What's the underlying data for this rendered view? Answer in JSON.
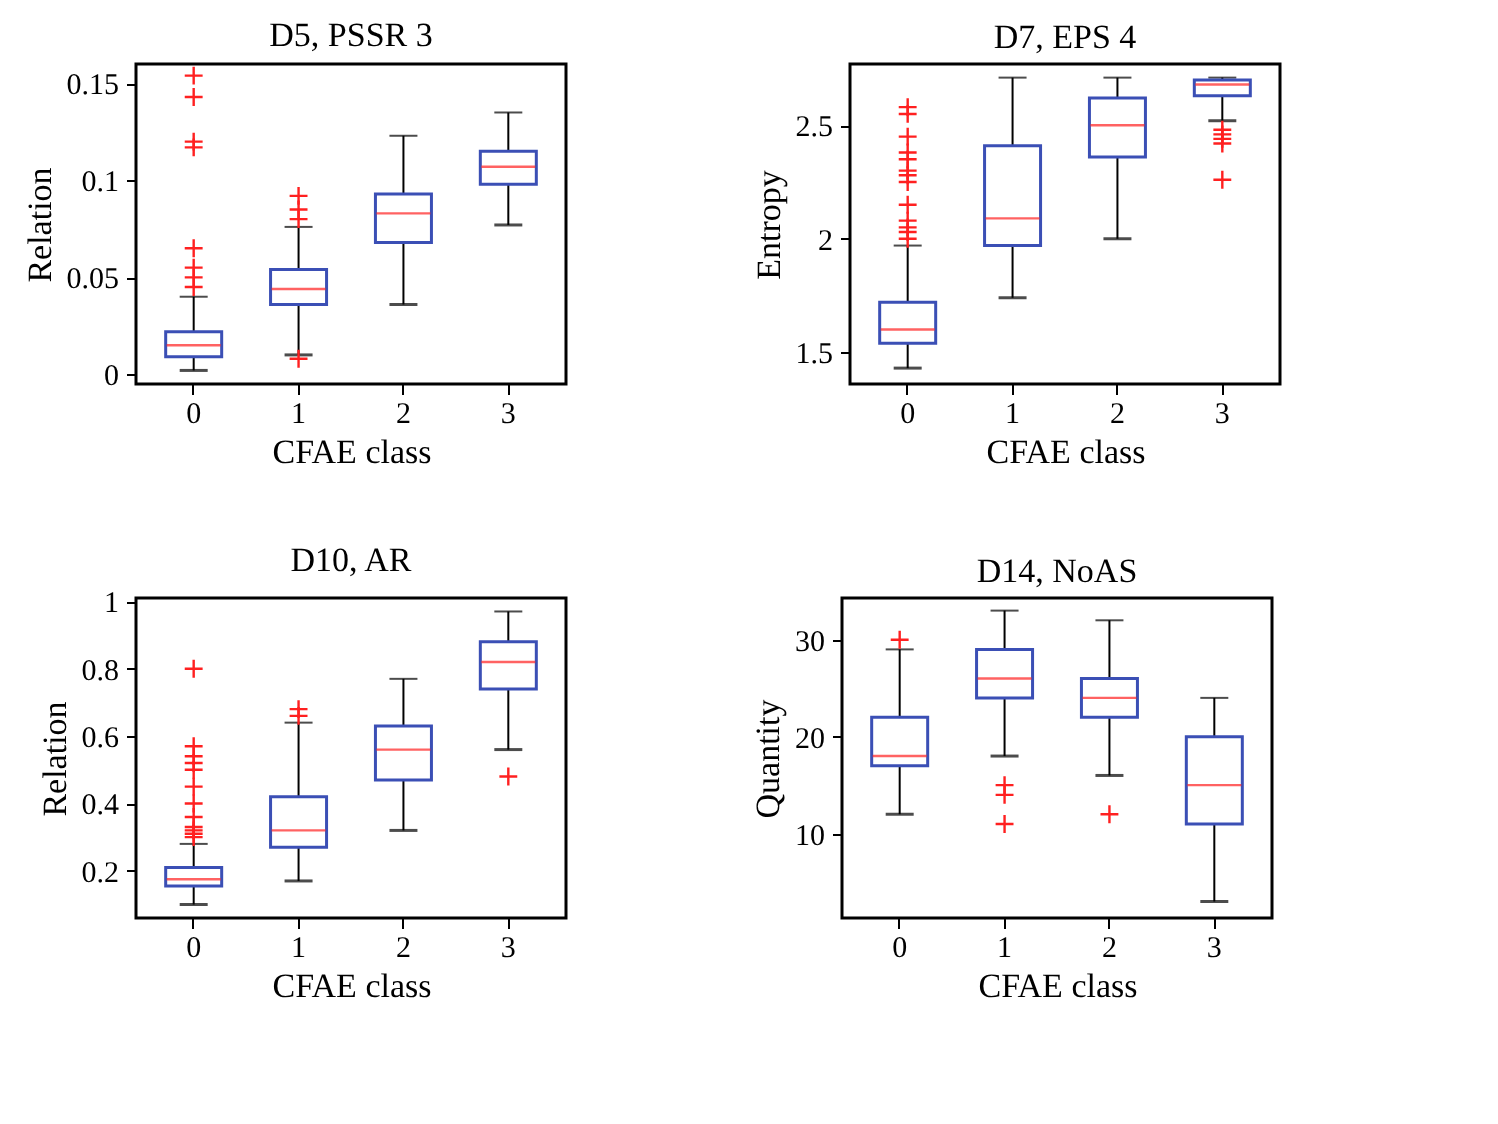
{
  "chart_data": [
    {
      "type": "box",
      "title": "D5, PSSR 3",
      "xlabel": "CFAE class",
      "ylabel": "Relation",
      "categories": [
        "0",
        "1",
        "2",
        "3"
      ],
      "ylim": [
        -0.005,
        0.16
      ],
      "yticks": [
        0,
        0.05,
        0.1,
        0.15
      ],
      "grid": false,
      "boxes": [
        {
          "low": 0.002,
          "q1": 0.009,
          "median": 0.015,
          "q3": 0.022,
          "high": 0.04,
          "outliers": [
            0.154,
            0.143,
            0.12,
            0.117,
            0.065,
            0.055,
            0.05,
            0.045
          ]
        },
        {
          "low": 0.01,
          "q1": 0.036,
          "median": 0.044,
          "q3": 0.054,
          "high": 0.076,
          "outliers": [
            0.092,
            0.085,
            0.08,
            0.008
          ]
        },
        {
          "low": 0.036,
          "q1": 0.068,
          "median": 0.083,
          "q3": 0.093,
          "high": 0.123
        },
        {
          "low": 0.077,
          "q1": 0.098,
          "median": 0.107,
          "q3": 0.115,
          "high": 0.135
        }
      ]
    },
    {
      "type": "box",
      "title": "D7, EPS 4",
      "xlabel": "CFAE class",
      "ylabel": "Entropy",
      "categories": [
        "0",
        "1",
        "2",
        "3"
      ],
      "ylim": [
        1.36,
        2.77
      ],
      "yticks": [
        1.5,
        2,
        2.5
      ],
      "grid": false,
      "boxes": [
        {
          "low": 1.43,
          "q1": 1.54,
          "median": 1.6,
          "q3": 1.72,
          "high": 1.97,
          "outliers": [
            2.58,
            2.55,
            2.45,
            2.38,
            2.35,
            2.3,
            2.28,
            2.25,
            2.15,
            2.08,
            2.05,
            2.03,
            2.0
          ]
        },
        {
          "low": 1.74,
          "q1": 1.97,
          "median": 2.09,
          "q3": 2.41,
          "high": 2.71
        },
        {
          "low": 2.0,
          "q1": 2.36,
          "median": 2.5,
          "q3": 2.62,
          "high": 2.71
        },
        {
          "low": 2.52,
          "q1": 2.63,
          "median": 2.68,
          "q3": 2.7,
          "high": 2.71,
          "outliers": [
            2.48,
            2.46,
            2.44,
            2.42,
            2.26
          ]
        }
      ]
    },
    {
      "type": "box",
      "title": "D10, AR",
      "xlabel": "CFAE class",
      "ylabel": "Relation",
      "categories": [
        "0",
        "1",
        "2",
        "3"
      ],
      "ylim": [
        0.06,
        1.01
      ],
      "yticks": [
        0.2,
        0.4,
        0.6,
        0.8,
        1
      ],
      "grid": false,
      "boxes": [
        {
          "low": 0.1,
          "q1": 0.155,
          "median": 0.175,
          "q3": 0.21,
          "high": 0.28,
          "outliers": [
            0.8,
            0.57,
            0.54,
            0.52,
            0.5,
            0.45,
            0.4,
            0.36,
            0.33,
            0.32,
            0.31,
            0.3
          ]
        },
        {
          "low": 0.17,
          "q1": 0.27,
          "median": 0.32,
          "q3": 0.42,
          "high": 0.64,
          "outliers": [
            0.68,
            0.66
          ]
        },
        {
          "low": 0.32,
          "q1": 0.47,
          "median": 0.56,
          "q3": 0.63,
          "high": 0.77
        },
        {
          "low": 0.56,
          "q1": 0.74,
          "median": 0.82,
          "q3": 0.88,
          "high": 0.97,
          "outliers": [
            0.48
          ]
        }
      ]
    },
    {
      "type": "box",
      "title": "D14, NoAS",
      "xlabel": "CFAE class",
      "ylabel": "Quantity",
      "categories": [
        "0",
        "1",
        "2",
        "3"
      ],
      "ylim": [
        1.3,
        34.3
      ],
      "yticks": [
        10,
        20,
        30
      ],
      "grid": false,
      "boxes": [
        {
          "low": 12,
          "q1": 17,
          "median": 18,
          "q3": 22,
          "high": 29,
          "outliers": [
            30
          ]
        },
        {
          "low": 18,
          "q1": 24,
          "median": 26,
          "q3": 29,
          "high": 33,
          "outliers": [
            15,
            14,
            11
          ]
        },
        {
          "low": 16,
          "q1": 22,
          "median": 24,
          "q3": 26,
          "high": 32,
          "outliers": [
            12
          ]
        },
        {
          "low": 3,
          "q1": 11,
          "median": 15,
          "q3": 20,
          "high": 24
        }
      ]
    }
  ]
}
